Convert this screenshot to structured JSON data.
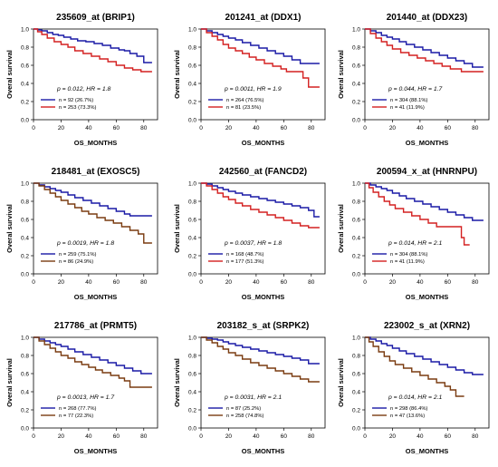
{
  "chart_data": [
    {
      "type": "line",
      "title": "235609_at (BRIP1)",
      "xlabel": "OS_MONTHS",
      "ylabel": "Overal survival",
      "xlim": [
        0,
        90
      ],
      "ylim": [
        0,
        1
      ],
      "xticks": [
        0,
        20,
        40,
        60,
        80
      ],
      "yticks": [
        0.0,
        0.2,
        0.4,
        0.6,
        0.8,
        1.0
      ],
      "annotation": "p = 0.012, HR = 1.8",
      "series": [
        {
          "name": "n = 92 (26.7%)",
          "color": "#1a1aa6",
          "x": [
            0,
            3,
            6,
            10,
            14,
            18,
            22,
            27,
            32,
            38,
            44,
            50,
            56,
            62,
            66,
            70,
            75,
            80,
            86
          ],
          "y": [
            1.0,
            0.99,
            0.98,
            0.96,
            0.94,
            0.93,
            0.91,
            0.89,
            0.87,
            0.86,
            0.84,
            0.82,
            0.79,
            0.77,
            0.76,
            0.73,
            0.7,
            0.63,
            0.63
          ]
        },
        {
          "name": "n = 253 (73.3%)",
          "color": "#d42020",
          "x": [
            0,
            3,
            6,
            10,
            15,
            20,
            25,
            30,
            36,
            42,
            48,
            54,
            60,
            66,
            72,
            78,
            86
          ],
          "y": [
            1.0,
            0.97,
            0.94,
            0.9,
            0.86,
            0.83,
            0.8,
            0.76,
            0.73,
            0.7,
            0.67,
            0.64,
            0.6,
            0.57,
            0.55,
            0.53,
            0.53
          ]
        }
      ]
    },
    {
      "type": "line",
      "title": "201241_at (DDX1)",
      "xlabel": "OS_MONTHS",
      "ylabel": "Overal survival",
      "xlim": [
        0,
        90
      ],
      "ylim": [
        0,
        1
      ],
      "xticks": [
        0,
        20,
        40,
        60,
        80
      ],
      "yticks": [
        0.0,
        0.2,
        0.4,
        0.6,
        0.8,
        1.0
      ],
      "annotation": "p = 0.0011, HR = 1.9",
      "series": [
        {
          "name": "n = 264 (76.5%)",
          "color": "#1a1aa6",
          "x": [
            0,
            4,
            8,
            12,
            16,
            20,
            25,
            30,
            36,
            42,
            48,
            54,
            60,
            66,
            72,
            86
          ],
          "y": [
            1.0,
            0.98,
            0.96,
            0.94,
            0.92,
            0.9,
            0.88,
            0.85,
            0.82,
            0.79,
            0.76,
            0.73,
            0.7,
            0.66,
            0.62,
            0.62
          ]
        },
        {
          "name": "n = 81 (23.5%)",
          "color": "#d42020",
          "x": [
            0,
            4,
            8,
            12,
            16,
            20,
            25,
            30,
            35,
            40,
            46,
            52,
            58,
            62,
            66,
            74,
            78,
            86
          ],
          "y": [
            1.0,
            0.96,
            0.92,
            0.88,
            0.83,
            0.79,
            0.76,
            0.73,
            0.69,
            0.66,
            0.62,
            0.59,
            0.56,
            0.53,
            0.53,
            0.46,
            0.36,
            0.36
          ]
        }
      ]
    },
    {
      "type": "line",
      "title": "201440_at (DDX23)",
      "xlabel": "OS_MONTHS",
      "ylabel": "Overal survival",
      "xlim": [
        0,
        90
      ],
      "ylim": [
        0,
        1
      ],
      "xticks": [
        0,
        20,
        40,
        60,
        80
      ],
      "yticks": [
        0.0,
        0.2,
        0.4,
        0.6,
        0.8,
        1.0
      ],
      "annotation": "p = 0.044, HR = 1.7",
      "series": [
        {
          "name": "n = 304 (88.1%)",
          "color": "#1a1aa6",
          "x": [
            0,
            4,
            8,
            12,
            16,
            20,
            25,
            30,
            36,
            42,
            48,
            54,
            60,
            66,
            72,
            78,
            86
          ],
          "y": [
            1.0,
            0.98,
            0.96,
            0.93,
            0.91,
            0.89,
            0.86,
            0.83,
            0.8,
            0.77,
            0.74,
            0.71,
            0.68,
            0.65,
            0.62,
            0.58,
            0.58
          ]
        },
        {
          "name": "n = 41 (11.9%)",
          "color": "#d42020",
          "x": [
            0,
            4,
            8,
            12,
            16,
            20,
            26,
            32,
            38,
            44,
            50,
            56,
            62,
            70,
            86
          ],
          "y": [
            1.0,
            0.95,
            0.9,
            0.86,
            0.82,
            0.78,
            0.74,
            0.71,
            0.68,
            0.65,
            0.62,
            0.59,
            0.56,
            0.53,
            0.53
          ]
        }
      ]
    },
    {
      "type": "line",
      "title": "218481_at (EXOSC5)",
      "xlabel": "OS_MONTHS",
      "ylabel": "Overal survival",
      "xlim": [
        0,
        90
      ],
      "ylim": [
        0,
        1
      ],
      "xticks": [
        0,
        20,
        40,
        60,
        80
      ],
      "yticks": [
        0.0,
        0.2,
        0.4,
        0.6,
        0.8,
        1.0
      ],
      "annotation": "p = 0.0019, HR = 1.8",
      "series": [
        {
          "name": "n = 259 (75.1%)",
          "color": "#1a1aa6",
          "x": [
            0,
            4,
            8,
            12,
            16,
            20,
            25,
            30,
            36,
            42,
            48,
            54,
            60,
            66,
            70,
            86
          ],
          "y": [
            1.0,
            0.98,
            0.96,
            0.94,
            0.92,
            0.9,
            0.87,
            0.84,
            0.81,
            0.78,
            0.75,
            0.72,
            0.69,
            0.66,
            0.64,
            0.64
          ]
        },
        {
          "name": "n = 86 (24.9%)",
          "color": "#7a3b10",
          "x": [
            0,
            4,
            8,
            12,
            16,
            20,
            25,
            30,
            35,
            40,
            46,
            52,
            58,
            64,
            70,
            76,
            80,
            86
          ],
          "y": [
            1.0,
            0.97,
            0.93,
            0.89,
            0.85,
            0.81,
            0.77,
            0.73,
            0.69,
            0.66,
            0.62,
            0.59,
            0.56,
            0.52,
            0.48,
            0.44,
            0.34,
            0.34
          ]
        }
      ]
    },
    {
      "type": "line",
      "title": "242560_at (FANCD2)",
      "xlabel": "OS_MONTHS",
      "ylabel": "Overal survival",
      "xlim": [
        0,
        90
      ],
      "ylim": [
        0,
        1
      ],
      "xticks": [
        0,
        20,
        40,
        60,
        80
      ],
      "yticks": [
        0.0,
        0.2,
        0.4,
        0.6,
        0.8,
        1.0
      ],
      "annotation": "p = 0.0037, HR = 1.8",
      "series": [
        {
          "name": "n = 168 (48.7%)",
          "color": "#1a1aa6",
          "x": [
            0,
            4,
            8,
            12,
            16,
            20,
            25,
            30,
            36,
            42,
            48,
            54,
            60,
            66,
            72,
            78,
            82,
            86
          ],
          "y": [
            1.0,
            0.99,
            0.97,
            0.95,
            0.93,
            0.91,
            0.89,
            0.87,
            0.85,
            0.83,
            0.81,
            0.79,
            0.77,
            0.75,
            0.73,
            0.7,
            0.63,
            0.63
          ]
        },
        {
          "name": "n = 177 (51.3%)",
          "color": "#d42020",
          "x": [
            0,
            4,
            8,
            12,
            16,
            20,
            25,
            30,
            36,
            42,
            48,
            54,
            60,
            66,
            72,
            78,
            86
          ],
          "y": [
            1.0,
            0.97,
            0.93,
            0.89,
            0.85,
            0.82,
            0.78,
            0.75,
            0.71,
            0.68,
            0.65,
            0.62,
            0.59,
            0.56,
            0.53,
            0.51,
            0.51
          ]
        }
      ]
    },
    {
      "type": "line",
      "title": "200594_x_at (HNRNPU)",
      "xlabel": "OS_MONTHS",
      "ylabel": "Overal survival",
      "xlim": [
        0,
        90
      ],
      "ylim": [
        0,
        1
      ],
      "xticks": [
        0,
        20,
        40,
        60,
        80
      ],
      "yticks": [
        0.0,
        0.2,
        0.4,
        0.6,
        0.8,
        1.0
      ],
      "annotation": "p = 0.014, HR = 2.1",
      "series": [
        {
          "name": "n = 304 (88.1%)",
          "color": "#1a1aa6",
          "x": [
            0,
            4,
            8,
            12,
            16,
            20,
            25,
            30,
            36,
            42,
            48,
            54,
            60,
            66,
            72,
            78,
            86
          ],
          "y": [
            1.0,
            0.98,
            0.96,
            0.94,
            0.92,
            0.89,
            0.86,
            0.83,
            0.8,
            0.77,
            0.74,
            0.71,
            0.68,
            0.65,
            0.62,
            0.59,
            0.59
          ]
        },
        {
          "name": "n = 41 (11.9%)",
          "color": "#d42020",
          "x": [
            0,
            3,
            6,
            10,
            14,
            18,
            22,
            28,
            34,
            40,
            46,
            52,
            58,
            64,
            70,
            72,
            76
          ],
          "y": [
            1.0,
            0.95,
            0.9,
            0.85,
            0.8,
            0.76,
            0.72,
            0.68,
            0.64,
            0.6,
            0.56,
            0.52,
            0.52,
            0.52,
            0.4,
            0.32,
            0.32
          ]
        }
      ]
    },
    {
      "type": "line",
      "title": "217786_at (PRMT5)",
      "xlabel": "OS_MONTHS",
      "ylabel": "Overal survival",
      "xlim": [
        0,
        90
      ],
      "ylim": [
        0,
        1
      ],
      "xticks": [
        0,
        20,
        40,
        60,
        80
      ],
      "yticks": [
        0.0,
        0.2,
        0.4,
        0.6,
        0.8,
        1.0
      ],
      "annotation": "p = 0.0013, HR = 1.7",
      "series": [
        {
          "name": "n = 268 (77.7%)",
          "color": "#1a1aa6",
          "x": [
            0,
            4,
            8,
            12,
            16,
            20,
            25,
            30,
            36,
            42,
            48,
            54,
            60,
            66,
            72,
            78,
            86
          ],
          "y": [
            1.0,
            0.98,
            0.96,
            0.94,
            0.92,
            0.9,
            0.87,
            0.84,
            0.81,
            0.78,
            0.75,
            0.72,
            0.69,
            0.66,
            0.63,
            0.6,
            0.6
          ]
        },
        {
          "name": "n = 77 (22.3%)",
          "color": "#7a3b10",
          "x": [
            0,
            4,
            8,
            12,
            16,
            20,
            25,
            30,
            35,
            40,
            45,
            50,
            56,
            62,
            66,
            70,
            76,
            86
          ],
          "y": [
            1.0,
            0.96,
            0.92,
            0.88,
            0.84,
            0.8,
            0.77,
            0.73,
            0.7,
            0.67,
            0.64,
            0.61,
            0.58,
            0.55,
            0.52,
            0.45,
            0.45,
            0.45
          ]
        }
      ]
    },
    {
      "type": "line",
      "title": "203182_s_at (SRPK2)",
      "xlabel": "OS_MONTHS",
      "ylabel": "Overal survival",
      "xlim": [
        0,
        90
      ],
      "ylim": [
        0,
        1
      ],
      "xticks": [
        0,
        20,
        40,
        60,
        80
      ],
      "yticks": [
        0.0,
        0.2,
        0.4,
        0.6,
        0.8,
        1.0
      ],
      "annotation": "p = 0.0031, HR = 2.1",
      "series": [
        {
          "name": "n = 87 (25.2%)",
          "color": "#1a1aa6",
          "x": [
            0,
            4,
            8,
            12,
            16,
            20,
            25,
            30,
            36,
            42,
            48,
            54,
            60,
            66,
            72,
            78,
            86
          ],
          "y": [
            1.0,
            0.99,
            0.98,
            0.97,
            0.95,
            0.93,
            0.91,
            0.89,
            0.87,
            0.85,
            0.83,
            0.81,
            0.79,
            0.77,
            0.75,
            0.71,
            0.71
          ]
        },
        {
          "name": "n = 258 (74.8%)",
          "color": "#7a3b10",
          "x": [
            0,
            4,
            8,
            12,
            16,
            20,
            25,
            30,
            36,
            42,
            48,
            54,
            60,
            66,
            72,
            78,
            86
          ],
          "y": [
            1.0,
            0.97,
            0.94,
            0.9,
            0.87,
            0.83,
            0.8,
            0.76,
            0.72,
            0.69,
            0.66,
            0.63,
            0.6,
            0.57,
            0.54,
            0.51,
            0.51
          ]
        }
      ]
    },
    {
      "type": "line",
      "title": "223002_s_at (XRN2)",
      "xlabel": "OS_MONTHS",
      "ylabel": "Overal survival",
      "xlim": [
        0,
        90
      ],
      "ylim": [
        0,
        1
      ],
      "xticks": [
        0,
        20,
        40,
        60,
        80
      ],
      "yticks": [
        0.0,
        0.2,
        0.4,
        0.6,
        0.8,
        1.0
      ],
      "annotation": "p = 0.014, HR = 2.1",
      "series": [
        {
          "name": "n = 298 (86.4%)",
          "color": "#1a1aa6",
          "x": [
            0,
            4,
            8,
            12,
            16,
            20,
            25,
            30,
            36,
            42,
            48,
            54,
            60,
            66,
            72,
            78,
            86
          ],
          "y": [
            1.0,
            0.98,
            0.96,
            0.93,
            0.91,
            0.88,
            0.85,
            0.82,
            0.79,
            0.76,
            0.73,
            0.7,
            0.67,
            0.64,
            0.61,
            0.59,
            0.59
          ]
        },
        {
          "name": "n = 47 (13.6%)",
          "color": "#7a3b10",
          "x": [
            0,
            3,
            6,
            10,
            14,
            18,
            22,
            28,
            34,
            40,
            46,
            52,
            58,
            62,
            66,
            72
          ],
          "y": [
            1.0,
            0.95,
            0.9,
            0.84,
            0.79,
            0.74,
            0.7,
            0.66,
            0.62,
            0.58,
            0.54,
            0.5,
            0.46,
            0.42,
            0.35,
            0.35
          ]
        }
      ]
    }
  ]
}
